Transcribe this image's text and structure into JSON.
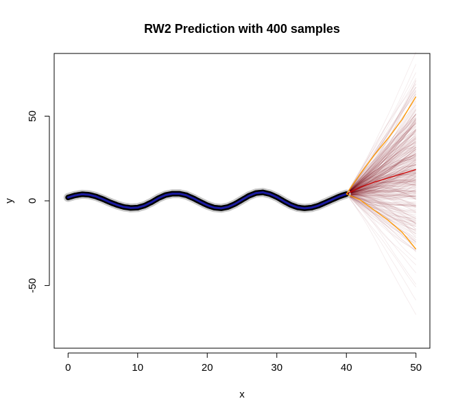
{
  "chart_data": {
    "type": "line",
    "title": "RW2 Prediction with 400 samples",
    "xlabel": "x",
    "ylabel": "y",
    "xlim": [
      -2,
      52
    ],
    "ylim": [
      -87,
      87
    ],
    "xticks": [
      0,
      10,
      20,
      30,
      40,
      50
    ],
    "yticks": [
      -50,
      0,
      50
    ],
    "grid": false,
    "legend": "none",
    "n_samples": 400,
    "forecast_start": 40,
    "forecast_end": 50,
    "observed": {
      "x": [
        0,
        1,
        2,
        3,
        4,
        5,
        6,
        7,
        8,
        9,
        10,
        11,
        12,
        13,
        14,
        15,
        16,
        17,
        18,
        19,
        20,
        21,
        22,
        23,
        24,
        25,
        26,
        27,
        28,
        29,
        30,
        31,
        32,
        33,
        34,
        35,
        36,
        37,
        38,
        39,
        40
      ],
      "y": [
        2.0,
        3.2,
        3.9,
        3.6,
        2.6,
        1.0,
        -0.8,
        -2.4,
        -3.6,
        -4.2,
        -4.0,
        -2.8,
        -0.8,
        1.6,
        3.4,
        4.2,
        4.2,
        3.3,
        1.5,
        -0.6,
        -2.6,
        -4.0,
        -4.4,
        -3.6,
        -1.8,
        0.6,
        3.0,
        4.6,
        5.0,
        4.0,
        2.2,
        -0.2,
        -2.4,
        -3.9,
        -4.4,
        -4.0,
        -2.8,
        -1.0,
        0.8,
        2.6,
        4.0
      ]
    },
    "series": [
      {
        "name": "",
        "role": "mean",
        "color": "#cc0000",
        "x": [
          40,
          42,
          44,
          46,
          48,
          50
        ],
        "y": [
          4.0,
          8.0,
          11.0,
          13.5,
          16.0,
          18.5
        ]
      },
      {
        "name": "",
        "role": "upper",
        "color": "#ff9900",
        "x": [
          40,
          42,
          44,
          46,
          48,
          50
        ],
        "y": [
          4.0,
          16.0,
          27.0,
          37.0,
          48.0,
          61.5
        ]
      },
      {
        "name": "",
        "role": "lower",
        "color": "#ff9900",
        "x": [
          40,
          42,
          44,
          46,
          48,
          50
        ],
        "y": [
          4.0,
          0.5,
          -5.5,
          -11.5,
          -18.5,
          -28.5
        ]
      }
    ],
    "colors": {
      "observed_band": "#000000",
      "observed_line": "#1a1aa0",
      "observed_halo": "#c8c8c8",
      "sample_paths": "#7a0a1a",
      "mean": "#cc0000",
      "interval": "#ff9900"
    }
  }
}
